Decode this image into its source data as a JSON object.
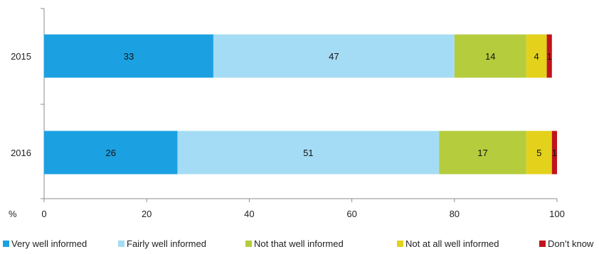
{
  "chart_data": {
    "type": "bar",
    "orientation": "horizontal",
    "stacked": true,
    "categories": [
      "2015",
      "2016"
    ],
    "series": [
      {
        "name": "Very well informed",
        "values": [
          33,
          26
        ],
        "color": "#1ba1e2"
      },
      {
        "name": "Fairly well informed",
        "values": [
          47,
          51
        ],
        "color": "#a5dcf5"
      },
      {
        "name": "Not that well informed",
        "values": [
          14,
          17
        ],
        "color": "#b5cc3c"
      },
      {
        "name": "Not at all well informed",
        "values": [
          4,
          5
        ],
        "color": "#e3d11b"
      },
      {
        "name": "Don’t know",
        "values": [
          1,
          1
        ],
        "color": "#c0141c"
      }
    ],
    "xlabel": "%",
    "xlim": [
      0,
      100
    ],
    "x_ticks": [
      "0",
      "20",
      "40",
      "60",
      "80",
      "100"
    ],
    "grid": false,
    "legend_position": "bottom"
  }
}
